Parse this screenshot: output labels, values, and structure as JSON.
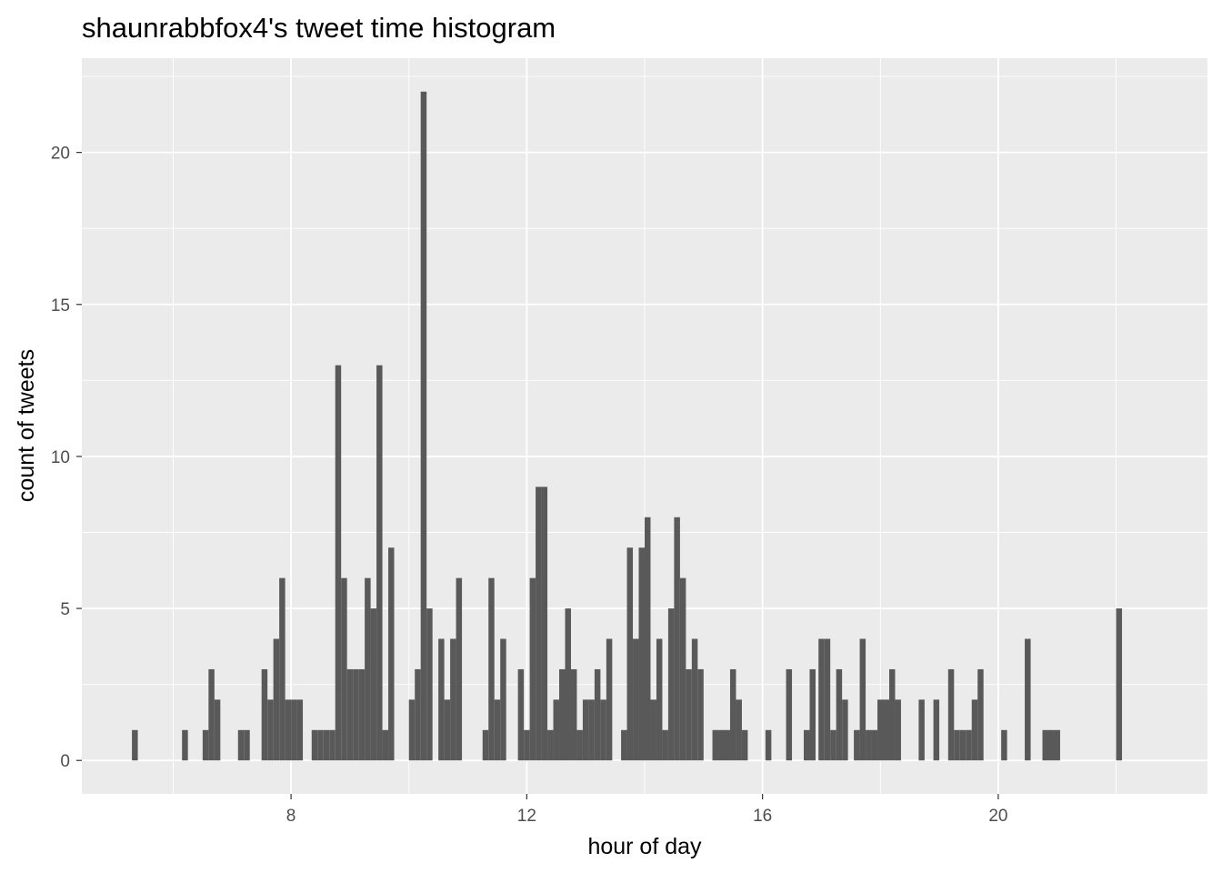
{
  "chart_data": {
    "type": "bar",
    "title": "shaunrabbfox4's tweet time histogram",
    "xlabel": "hour of day",
    "ylabel": "count of tweets",
    "xlim": [
      4.45,
      23.55
    ],
    "ylim": [
      -1.1,
      23.1
    ],
    "xticks": [
      8,
      12,
      16,
      20
    ],
    "yticks": [
      0,
      5,
      10,
      15,
      20
    ],
    "grid": true,
    "bin_width": 0.1,
    "colors": {
      "panel": "#ebebeb",
      "bar": "#595959",
      "grid": "#ffffff",
      "tick": "#4d4d4d"
    },
    "bins": [
      {
        "x": 5.35,
        "y": 1
      },
      {
        "x": 6.2,
        "y": 1
      },
      {
        "x": 6.55,
        "y": 1
      },
      {
        "x": 6.65,
        "y": 3
      },
      {
        "x": 6.75,
        "y": 2
      },
      {
        "x": 7.15,
        "y": 1
      },
      {
        "x": 7.25,
        "y": 1
      },
      {
        "x": 7.55,
        "y": 3
      },
      {
        "x": 7.65,
        "y": 2
      },
      {
        "x": 7.75,
        "y": 4
      },
      {
        "x": 7.85,
        "y": 6
      },
      {
        "x": 7.95,
        "y": 2
      },
      {
        "x": 8.05,
        "y": 2
      },
      {
        "x": 8.15,
        "y": 2
      },
      {
        "x": 8.4,
        "y": 1
      },
      {
        "x": 8.5,
        "y": 1
      },
      {
        "x": 8.6,
        "y": 1
      },
      {
        "x": 8.7,
        "y": 1
      },
      {
        "x": 8.8,
        "y": 13
      },
      {
        "x": 8.9,
        "y": 6
      },
      {
        "x": 9.0,
        "y": 3
      },
      {
        "x": 9.1,
        "y": 3
      },
      {
        "x": 9.2,
        "y": 3
      },
      {
        "x": 9.3,
        "y": 6
      },
      {
        "x": 9.4,
        "y": 5
      },
      {
        "x": 9.5,
        "y": 13
      },
      {
        "x": 9.6,
        "y": 1
      },
      {
        "x": 9.7,
        "y": 7
      },
      {
        "x": 10.05,
        "y": 2
      },
      {
        "x": 10.15,
        "y": 3
      },
      {
        "x": 10.25,
        "y": 22
      },
      {
        "x": 10.35,
        "y": 5
      },
      {
        "x": 10.55,
        "y": 4
      },
      {
        "x": 10.65,
        "y": 2
      },
      {
        "x": 10.75,
        "y": 4
      },
      {
        "x": 10.85,
        "y": 6
      },
      {
        "x": 11.3,
        "y": 1
      },
      {
        "x": 11.4,
        "y": 6
      },
      {
        "x": 11.5,
        "y": 2
      },
      {
        "x": 11.6,
        "y": 4
      },
      {
        "x": 11.9,
        "y": 3
      },
      {
        "x": 12.0,
        "y": 1
      },
      {
        "x": 12.1,
        "y": 6
      },
      {
        "x": 12.2,
        "y": 9
      },
      {
        "x": 12.3,
        "y": 9
      },
      {
        "x": 12.4,
        "y": 1
      },
      {
        "x": 12.5,
        "y": 2
      },
      {
        "x": 12.6,
        "y": 3
      },
      {
        "x": 12.7,
        "y": 5
      },
      {
        "x": 12.8,
        "y": 3
      },
      {
        "x": 12.9,
        "y": 1
      },
      {
        "x": 13.0,
        "y": 2
      },
      {
        "x": 13.1,
        "y": 2
      },
      {
        "x": 13.2,
        "y": 3
      },
      {
        "x": 13.3,
        "y": 2
      },
      {
        "x": 13.4,
        "y": 4
      },
      {
        "x": 13.65,
        "y": 1
      },
      {
        "x": 13.75,
        "y": 7
      },
      {
        "x": 13.85,
        "y": 4
      },
      {
        "x": 13.95,
        "y": 7
      },
      {
        "x": 14.05,
        "y": 8
      },
      {
        "x": 14.15,
        "y": 2
      },
      {
        "x": 14.25,
        "y": 4
      },
      {
        "x": 14.35,
        "y": 1
      },
      {
        "x": 14.45,
        "y": 5
      },
      {
        "x": 14.55,
        "y": 8
      },
      {
        "x": 14.65,
        "y": 6
      },
      {
        "x": 14.75,
        "y": 3
      },
      {
        "x": 14.85,
        "y": 4
      },
      {
        "x": 14.95,
        "y": 3
      },
      {
        "x": 15.2,
        "y": 1
      },
      {
        "x": 15.3,
        "y": 1
      },
      {
        "x": 15.4,
        "y": 1
      },
      {
        "x": 15.5,
        "y": 3
      },
      {
        "x": 15.6,
        "y": 2
      },
      {
        "x": 15.7,
        "y": 1
      },
      {
        "x": 16.1,
        "y": 1
      },
      {
        "x": 16.45,
        "y": 3
      },
      {
        "x": 16.75,
        "y": 1
      },
      {
        "x": 16.85,
        "y": 3
      },
      {
        "x": 17.0,
        "y": 4
      },
      {
        "x": 17.1,
        "y": 4
      },
      {
        "x": 17.2,
        "y": 1
      },
      {
        "x": 17.3,
        "y": 3
      },
      {
        "x": 17.4,
        "y": 2
      },
      {
        "x": 17.6,
        "y": 1
      },
      {
        "x": 17.7,
        "y": 4
      },
      {
        "x": 17.8,
        "y": 1
      },
      {
        "x": 17.9,
        "y": 1
      },
      {
        "x": 18.0,
        "y": 2
      },
      {
        "x": 18.1,
        "y": 2
      },
      {
        "x": 18.2,
        "y": 3
      },
      {
        "x": 18.3,
        "y": 2
      },
      {
        "x": 18.7,
        "y": 2
      },
      {
        "x": 18.95,
        "y": 2
      },
      {
        "x": 19.2,
        "y": 3
      },
      {
        "x": 19.3,
        "y": 1
      },
      {
        "x": 19.4,
        "y": 1
      },
      {
        "x": 19.5,
        "y": 1
      },
      {
        "x": 19.6,
        "y": 2
      },
      {
        "x": 19.7,
        "y": 3
      },
      {
        "x": 20.1,
        "y": 1
      },
      {
        "x": 20.5,
        "y": 4
      },
      {
        "x": 20.8,
        "y": 1
      },
      {
        "x": 20.9,
        "y": 1
      },
      {
        "x": 21.0,
        "y": 1
      },
      {
        "x": 22.05,
        "y": 5
      }
    ]
  }
}
